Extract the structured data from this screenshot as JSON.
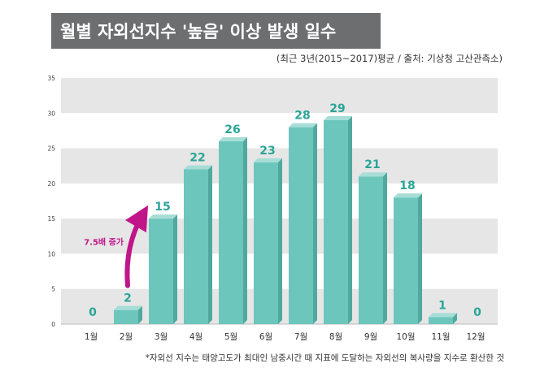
{
  "header": {
    "title": "월별 자외선지수 '높음' 이상 발생 일수",
    "subtitle": "(최근 3년(2015~2017)평균 / 출처: 기상청 고산관측소)"
  },
  "footnote": "*자외선 지수는 태양고도가 최대인 남중시간 때 지표에 도달하는 자외선의 복사량을 지수로 환산한 것",
  "colors": {
    "bar_front": "#6cc6bc",
    "bar_top": "#a7ddd7",
    "bar_side": "#4fa99f",
    "label": "#2aa597",
    "annotation": "#c0168a",
    "band": "#e6e6e6",
    "title_bg": "#6d6e70"
  },
  "chart_data": {
    "type": "bar",
    "categories": [
      "1월",
      "2월",
      "3월",
      "4월",
      "5월",
      "6월",
      "7월",
      "8월",
      "9월",
      "10월",
      "11월",
      "12월"
    ],
    "values": [
      0,
      2,
      15,
      22,
      26,
      23,
      28,
      29,
      21,
      18,
      1,
      0
    ],
    "ylim": [
      0,
      35
    ],
    "yticks": [
      0,
      5,
      10,
      15,
      20,
      25,
      30,
      35
    ],
    "grid": "alternating horizontal bands",
    "annotation": {
      "text": "7.5배 증가",
      "from_category": "2월",
      "to_category": "3월"
    }
  }
}
